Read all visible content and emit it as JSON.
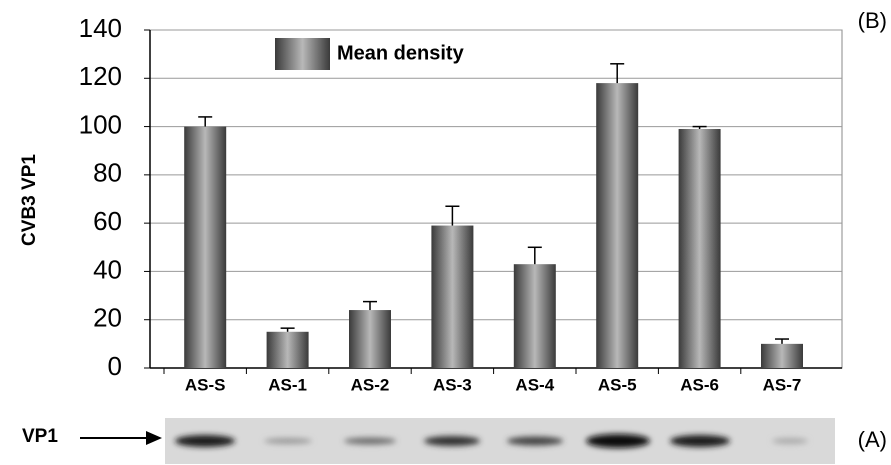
{
  "chart_data": {
    "type": "bar",
    "panel_label": "(B)",
    "y_label": "CVB3 VP1",
    "categories": [
      "AS-S",
      "AS-1",
      "AS-2",
      "AS-3",
      "AS-4",
      "AS-5",
      "AS-6",
      "AS-7"
    ],
    "series": [
      {
        "name": "Mean density",
        "color": "#8a8a8a",
        "values": [
          100,
          15,
          24,
          59,
          43,
          118,
          99,
          10
        ],
        "errors": [
          4,
          1.5,
          3.5,
          8,
          7,
          8,
          1,
          2
        ]
      }
    ],
    "ylim": [
      0,
      140
    ],
    "yticks": [
      0,
      20,
      40,
      60,
      80,
      100,
      120,
      140
    ],
    "grid": true
  },
  "blot": {
    "label": "VP1",
    "panel_label": "(A)"
  }
}
